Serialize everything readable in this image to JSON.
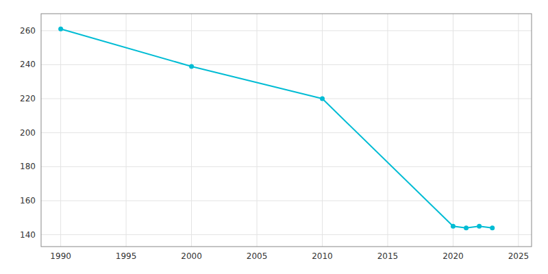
{
  "chart_data": {
    "type": "line",
    "x": [
      1990,
      2000,
      2010,
      2020,
      2021,
      2022,
      2023
    ],
    "values": [
      261,
      239,
      220,
      145,
      144,
      145,
      144
    ],
    "color": "#00bcd4",
    "marker": "circle",
    "xlim": [
      1988.5,
      2026
    ],
    "ylim": [
      133,
      270
    ],
    "xticks": [
      1990,
      1995,
      2000,
      2005,
      2010,
      2015,
      2020,
      2025
    ],
    "yticks": [
      140,
      160,
      180,
      200,
      220,
      240,
      260
    ],
    "grid": true
  }
}
